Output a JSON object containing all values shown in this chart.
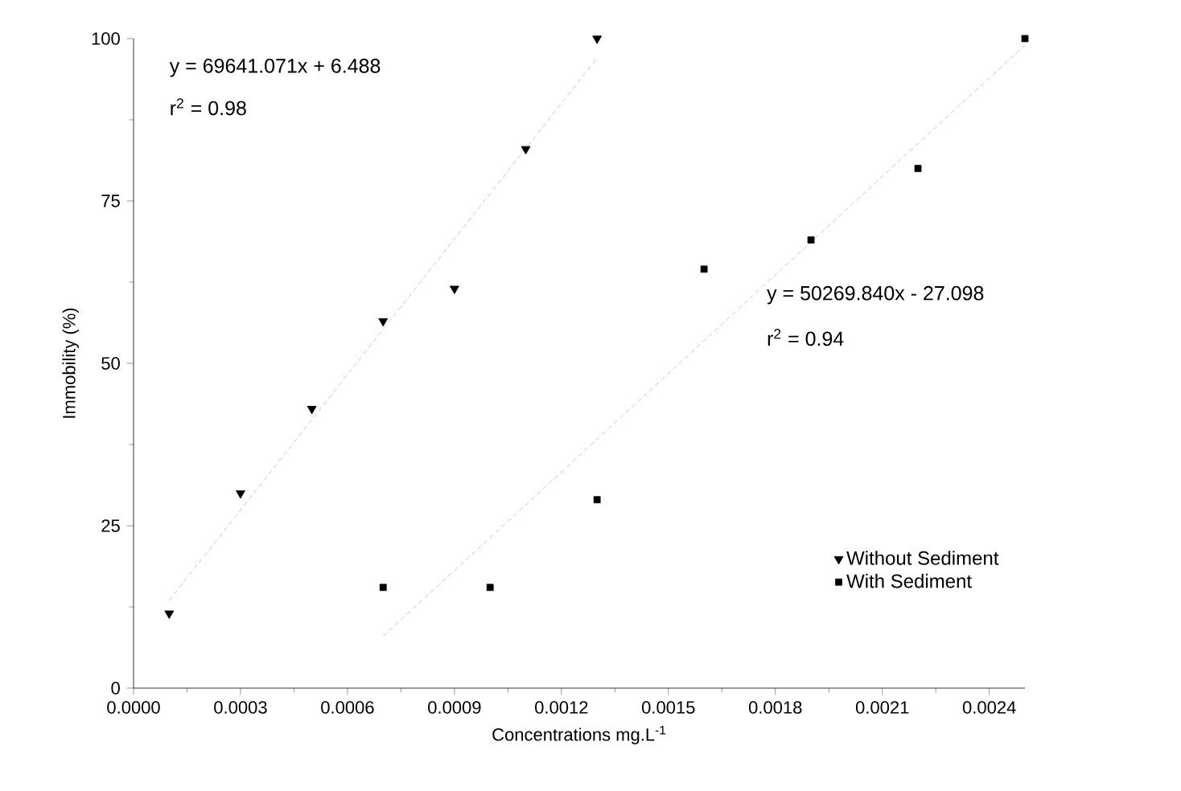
{
  "chart_data": {
    "type": "scatter",
    "xlabel": "Concentrations mg.L$^{-1}$",
    "ylabel": "Immobility (%)",
    "xlim": [
      0,
      0.0025
    ],
    "ylim": [
      0,
      100
    ],
    "xticks": [
      {
        "value": 0,
        "label": "0.0000"
      },
      {
        "value": 0.0003,
        "label": "0.0003"
      },
      {
        "value": 0.0006,
        "label": "0.0006"
      },
      {
        "value": 0.0009,
        "label": "0.0009"
      },
      {
        "value": 0.0012,
        "label": "0.0012"
      },
      {
        "value": 0.0015,
        "label": "0.0015"
      },
      {
        "value": 0.0018,
        "label": "0.0018"
      },
      {
        "value": 0.0021,
        "label": "0.0021"
      },
      {
        "value": 0.0024,
        "label": "0.0024"
      }
    ],
    "yticks": [
      0,
      25,
      50,
      75,
      100
    ],
    "grid": false,
    "legend": "bottom right",
    "annotations": [
      "y = 69641.071x + 6.488",
      "r$^{2}$ = 0.98",
      "y = 50269.840x - 27.098",
      "r$^{2}$ = 0.94"
    ],
    "series": [
      {
        "name": "Without Sediment",
        "color": "#000000",
        "marker": "triangle",
        "x": [
          0.0001,
          0.0003,
          0.0005,
          0.0007,
          0.0009,
          0.0011,
          0.0013
        ],
        "values": [
          11.5,
          30,
          43,
          56.5,
          61.5,
          83,
          100
        ]
      },
      {
        "name": "With Sediment",
        "color": "#000000",
        "marker": "square",
        "x": [
          0.0007,
          0.001,
          0.0013,
          0.0016,
          0.0019,
          0.0022,
          0.0025
        ],
        "values": [
          15.5,
          15.5,
          29,
          64.5,
          69,
          80,
          100
        ]
      },
      {
        "type": "line",
        "color": "#bbbbbb",
        "line_style": "dashed",
        "marker": "none",
        "x": [
          0.0001,
          0.0013
        ],
        "values": [
          13.5,
          97
        ]
      },
      {
        "type": "line",
        "color": "#bbbbbb",
        "line_style": "dashed",
        "marker": "none",
        "x": [
          0.0007,
          0.0025
        ],
        "values": [
          8,
          99
        ]
      }
    ]
  }
}
